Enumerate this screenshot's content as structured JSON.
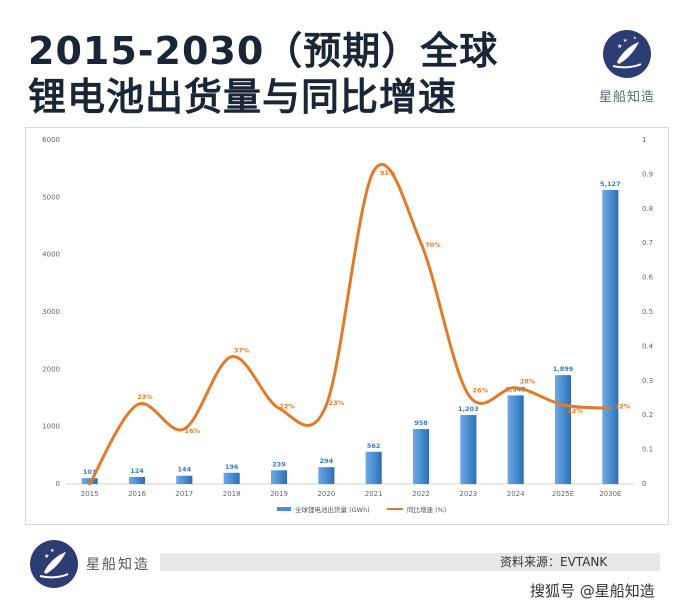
{
  "title_line1": "2015-2030（预期）全球",
  "title_line2": "锂电池出货量与同比增速",
  "brand": "星船知造",
  "source": "资料来源：EVTANK",
  "watermark": "搜狐号 @星船知造",
  "colors": {
    "bar": "#4a8fd3",
    "line": "#e07b2a",
    "title": "#1a2536",
    "logo": "#2d3d73"
  },
  "chart_data": {
    "type": "bar",
    "categories": [
      "2015",
      "2016",
      "2017",
      "2018",
      "2019",
      "2020",
      "2021",
      "2022",
      "2023",
      "2024",
      "2025E",
      "2030E"
    ],
    "series": [
      {
        "name": "全球锂电池出货量 (GWh)",
        "type": "bar",
        "axis": "left",
        "values": [
          101,
          124,
          144,
          196,
          239,
          294,
          562,
          958,
          1203,
          1545,
          1899,
          5127
        ],
        "labels": [
          "101",
          "124",
          "144",
          "196",
          "239",
          "294",
          "562",
          "958",
          "1,203",
          "1,545",
          "1,899",
          "5,127"
        ]
      },
      {
        "name": "同比增速 (%)",
        "type": "line",
        "axis": "right",
        "values": [
          0.0,
          0.23,
          0.16,
          0.37,
          0.22,
          0.23,
          0.91,
          0.7,
          0.26,
          0.28,
          0.23,
          0.22
        ],
        "labels": [
          "",
          "23%",
          "16%",
          "37%",
          "22%",
          "23%",
          "91%",
          "70%",
          "26%",
          "28%",
          "23%",
          "22%"
        ]
      }
    ],
    "ylim_left": [
      0,
      6000
    ],
    "yticks_left": [
      "0",
      "1000",
      "2000",
      "3000",
      "4000",
      "5000",
      "6000"
    ],
    "ylim_right": [
      0,
      1
    ],
    "yticks_right": [
      "0",
      "0.1",
      "0.2",
      "0.3",
      "0.4",
      "0.5",
      "0.6",
      "0.7",
      "0.8",
      "0.9",
      "1"
    ],
    "legend_position": "bottom",
    "grid": false
  }
}
